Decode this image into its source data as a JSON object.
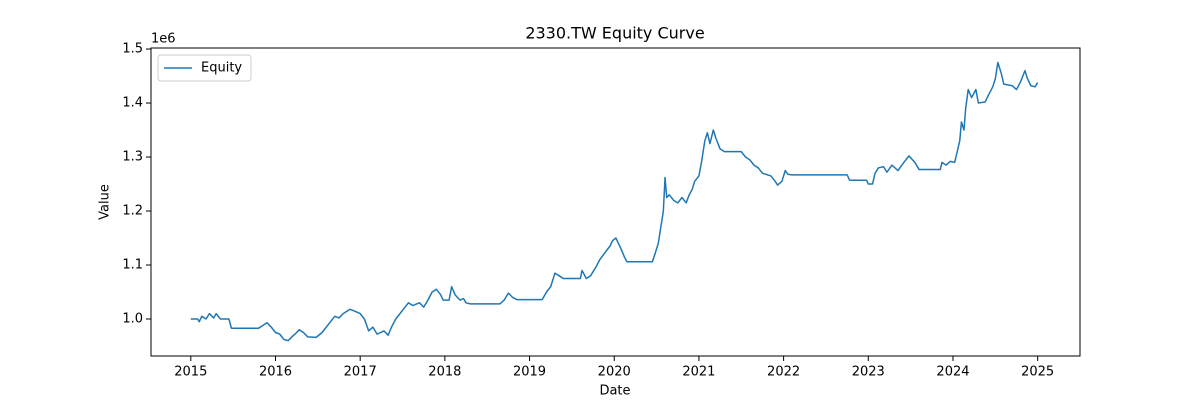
{
  "chart_data": {
    "type": "line",
    "title": "2330.TW Equity Curve",
    "x_label": "Date",
    "y_label": "Value",
    "y_offset_label": "1e6",
    "xlim": [
      2014.53,
      2025.5
    ],
    "xticks": [
      2015,
      2016,
      2017,
      2018,
      2019,
      2020,
      2021,
      2022,
      2023,
      2024,
      2025
    ],
    "ylim": [
      931500,
      1501900
    ],
    "yticks": [
      {
        "value": 1000000,
        "label": "1.0"
      },
      {
        "value": 1100000,
        "label": "1.1"
      },
      {
        "value": 1200000,
        "label": "1.2"
      },
      {
        "value": 1300000,
        "label": "1.3"
      },
      {
        "value": 1400000,
        "label": "1.4"
      },
      {
        "value": 1500000,
        "label": "1.5"
      }
    ],
    "grid": false,
    "legend": "upper left",
    "series": [
      {
        "name": "Equity",
        "color": "#1f77b4",
        "x": [
          2015.0,
          2015.08,
          2015.1,
          2015.13,
          2015.18,
          2015.22,
          2015.27,
          2015.3,
          2015.35,
          2015.45,
          2015.48,
          2015.6,
          2015.8,
          2015.85,
          2015.9,
          2015.95,
          2016.0,
          2016.05,
          2016.1,
          2016.15,
          2016.2,
          2016.25,
          2016.28,
          2016.33,
          2016.38,
          2016.48,
          2016.55,
          2016.6,
          2016.65,
          2016.7,
          2016.75,
          2016.8,
          2016.88,
          2016.93,
          2017.0,
          2017.05,
          2017.1,
          2017.15,
          2017.2,
          2017.28,
          2017.33,
          2017.37,
          2017.42,
          2017.47,
          2017.52,
          2017.57,
          2017.62,
          2017.7,
          2017.75,
          2017.8,
          2017.85,
          2017.9,
          2017.95,
          2017.98,
          2018.05,
          2018.08,
          2018.12,
          2018.18,
          2018.22,
          2018.25,
          2018.3,
          2018.65,
          2018.7,
          2018.75,
          2018.8,
          2018.85,
          2019.15,
          2019.2,
          2019.25,
          2019.3,
          2019.35,
          2019.4,
          2019.6,
          2019.62,
          2019.67,
          2019.72,
          2019.78,
          2019.83,
          2019.9,
          2019.95,
          2019.98,
          2020.02,
          2020.08,
          2020.12,
          2020.15,
          2020.45,
          2020.48,
          2020.52,
          2020.55,
          2020.58,
          2020.6,
          2020.62,
          2020.65,
          2020.7,
          2020.75,
          2020.8,
          2020.85,
          2020.88,
          2020.92,
          2020.95,
          2021.0,
          2021.03,
          2021.07,
          2021.1,
          2021.13,
          2021.17,
          2021.2,
          2021.25,
          2021.3,
          2021.5,
          2021.55,
          2021.6,
          2021.65,
          2021.7,
          2021.75,
          2021.85,
          2021.9,
          2021.93,
          2021.98,
          2022.02,
          2022.05,
          2022.1,
          2022.75,
          2022.78,
          2022.98,
          2023.0,
          2023.05,
          2023.08,
          2023.12,
          2023.18,
          2023.22,
          2023.28,
          2023.35,
          2023.42,
          2023.48,
          2023.55,
          2023.6,
          2023.85,
          2023.87,
          2023.92,
          2023.97,
          2024.02,
          2024.05,
          2024.08,
          2024.1,
          2024.13,
          2024.15,
          2024.18,
          2024.22,
          2024.27,
          2024.3,
          2024.38,
          2024.42,
          2024.47,
          2024.5,
          2024.53,
          2024.57,
          2024.6,
          2024.7,
          2024.75,
          2024.8,
          2024.85,
          2024.88,
          2024.92,
          2024.97,
          2025.0
        ],
        "values": [
          1000000,
          1000000,
          995000,
          1005000,
          1000000,
          1010000,
          1002000,
          1010000,
          1000000,
          1000000,
          983000,
          983000,
          983000,
          988000,
          993000,
          985000,
          975000,
          972000,
          962000,
          960000,
          968000,
          975000,
          980000,
          975000,
          967000,
          966000,
          975000,
          985000,
          995000,
          1005000,
          1002000,
          1010000,
          1018000,
          1015000,
          1010000,
          1000000,
          978000,
          985000,
          972000,
          978000,
          970000,
          985000,
          1000000,
          1010000,
          1020000,
          1030000,
          1025000,
          1030000,
          1022000,
          1035000,
          1050000,
          1055000,
          1045000,
          1035000,
          1035000,
          1060000,
          1045000,
          1035000,
          1038000,
          1030000,
          1028000,
          1028000,
          1035000,
          1048000,
          1040000,
          1036000,
          1036000,
          1050000,
          1060000,
          1085000,
          1080000,
          1075000,
          1075000,
          1090000,
          1075000,
          1080000,
          1095000,
          1110000,
          1125000,
          1135000,
          1145000,
          1150000,
          1130000,
          1115000,
          1106000,
          1106000,
          1120000,
          1140000,
          1170000,
          1200000,
          1262000,
          1225000,
          1230000,
          1220000,
          1215000,
          1225000,
          1215000,
          1228000,
          1240000,
          1255000,
          1265000,
          1290000,
          1330000,
          1345000,
          1325000,
          1350000,
          1335000,
          1315000,
          1310000,
          1310000,
          1300000,
          1295000,
          1285000,
          1280000,
          1270000,
          1265000,
          1255000,
          1248000,
          1255000,
          1275000,
          1268000,
          1267000,
          1267000,
          1257000,
          1257000,
          1250000,
          1250000,
          1270000,
          1280000,
          1282000,
          1272000,
          1285000,
          1275000,
          1290000,
          1302000,
          1290000,
          1277000,
          1277000,
          1290000,
          1285000,
          1292000,
          1290000,
          1310000,
          1330000,
          1365000,
          1350000,
          1390000,
          1425000,
          1410000,
          1425000,
          1400000,
          1402000,
          1415000,
          1430000,
          1445000,
          1475000,
          1455000,
          1435000,
          1432000,
          1425000,
          1440000,
          1460000,
          1445000,
          1432000,
          1430000,
          1438000
        ]
      }
    ]
  }
}
